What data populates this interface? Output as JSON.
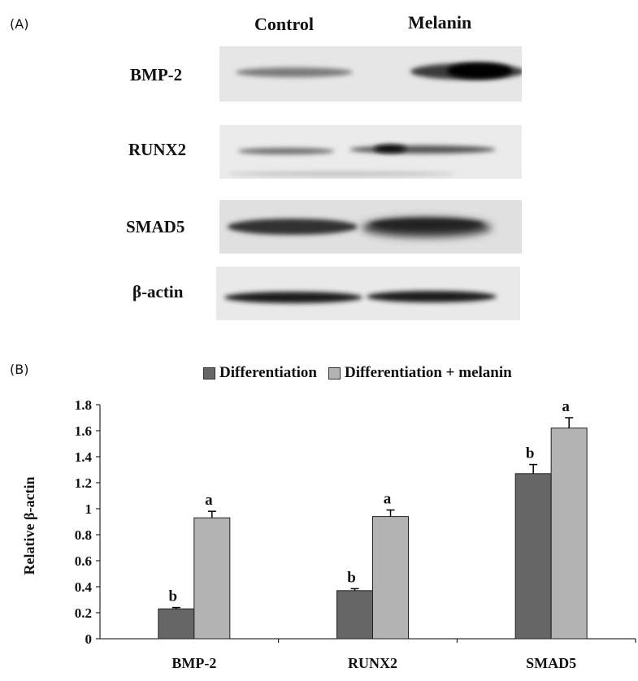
{
  "panel_a": {
    "label": "(A)",
    "columns": [
      "Control",
      "Melanin"
    ],
    "bands": [
      "BMP-2",
      "RUNX2",
      "SMAD5",
      "β-actin"
    ]
  },
  "panel_b": {
    "label": "(B)"
  },
  "chart_data": {
    "type": "bar",
    "categories": [
      "BMP-2",
      "RUNX2",
      "SMAD5"
    ],
    "series": [
      {
        "name": "Differentiation",
        "values": [
          0.23,
          0.37,
          1.27
        ],
        "errors": [
          0.01,
          0.015,
          0.07
        ],
        "labels": [
          "b",
          "b",
          "b"
        ],
        "color": "#666666"
      },
      {
        "name": "Differentiation + melanin",
        "values": [
          0.93,
          0.94,
          1.62
        ],
        "errors": [
          0.05,
          0.05,
          0.08
        ],
        "labels": [
          "a",
          "a",
          "a"
        ],
        "color": "#b3b3b3"
      }
    ],
    "ylabel": "Relative β-actin",
    "ylim": [
      0,
      1.8
    ],
    "yticks": [
      "0",
      "0.2",
      "0.4",
      "0.6",
      "0.8",
      "1",
      "1.2",
      "1.4",
      "1.6",
      "1.8"
    ],
    "legend": "top",
    "grid": false
  }
}
